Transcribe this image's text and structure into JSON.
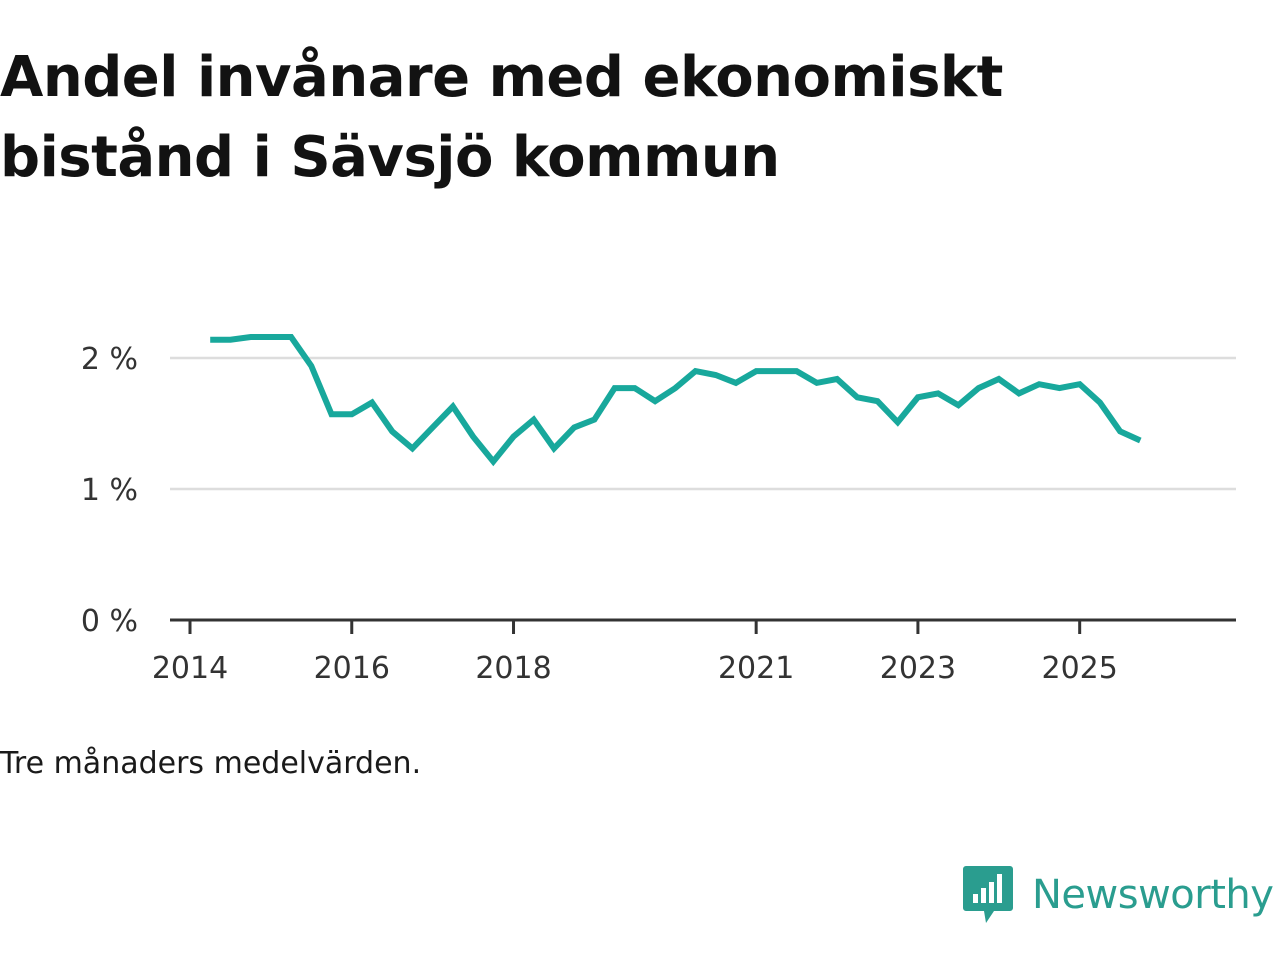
{
  "title_lines": [
    "Andel invånare med ekonomiskt",
    "bistånd i Sävsjö kommun"
  ],
  "note": "Tre månaders medelvärden.",
  "brand": "Newsworthy",
  "colors": {
    "line": "#18a89c",
    "grid": "#dddddd",
    "axis": "#333333",
    "brand": "#2a9d8f"
  },
  "chart_data": {
    "type": "line",
    "title": "Andel invånare med ekonomiskt bistånd i Sävsjö kommun",
    "xlabel": "",
    "ylabel": "",
    "xlim": [
      2014.0,
      2026.5
    ],
    "ylim": [
      0,
      2
    ],
    "x_ticks": [
      2014,
      2016,
      2018,
      2021,
      2023,
      2025
    ],
    "x_tick_labels": [
      "2014",
      "2016",
      "2018",
      "2021",
      "2023",
      "2025"
    ],
    "y_ticks": [
      0,
      1,
      2
    ],
    "y_tick_labels": [
      "0 %",
      "1 %",
      "2 %"
    ],
    "grid": true,
    "series": [
      {
        "name": "Andel invånare med ekonomiskt bistånd",
        "x": [
          2014.25,
          2014.5,
          2014.75,
          2015.0,
          2015.25,
          2015.5,
          2015.75,
          2016.0,
          2016.25,
          2016.5,
          2016.75,
          2017.0,
          2017.25,
          2017.5,
          2017.75,
          2018.0,
          2018.25,
          2018.5,
          2018.75,
          2019.0,
          2019.25,
          2019.5,
          2019.75,
          2020.0,
          2020.25,
          2020.5,
          2020.75,
          2021.0,
          2021.25,
          2021.5,
          2021.75,
          2022.0,
          2022.25,
          2022.5,
          2022.75,
          2023.0,
          2023.25,
          2023.5,
          2023.75,
          2024.0,
          2024.25,
          2024.5,
          2024.75,
          2025.0,
          2025.25,
          2025.5,
          2025.75
        ],
        "values": [
          2.14,
          2.14,
          2.16,
          2.16,
          2.16,
          1.94,
          1.57,
          1.57,
          1.66,
          1.44,
          1.31,
          1.47,
          1.63,
          1.4,
          1.21,
          1.4,
          1.53,
          1.31,
          1.47,
          1.53,
          1.77,
          1.77,
          1.67,
          1.77,
          1.9,
          1.87,
          1.81,
          1.9,
          1.9,
          1.9,
          1.81,
          1.84,
          1.7,
          1.67,
          1.51,
          1.7,
          1.73,
          1.64,
          1.77,
          1.84,
          1.73,
          1.8,
          1.77,
          1.8,
          1.66,
          1.44,
          1.37
        ]
      }
    ]
  }
}
